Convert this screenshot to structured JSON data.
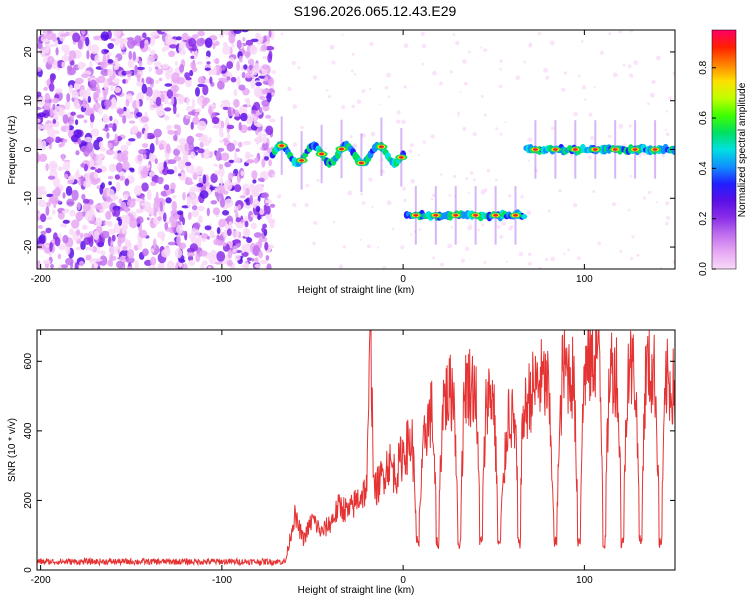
{
  "title": "S196.2026.065.12.43.E29",
  "colors": {
    "snr_line": "#e53333",
    "colormap": [
      "#f8d9f8",
      "#e8a8f4",
      "#c070ee",
      "#8a2ee8",
      "#5a10e6",
      "#2020ff",
      "#1090ff",
      "#00e0e0",
      "#00e060",
      "#40ff00",
      "#c0ff00",
      "#ffe000",
      "#ff8000",
      "#ff2000",
      "#ff0066"
    ]
  },
  "chart_data": [
    {
      "type": "heatmap",
      "xlabel": "Height of straight line (km)",
      "ylabel": "Frequency (Hz)",
      "xlim": [
        -202,
        150
      ],
      "ylim": [
        -24.5,
        24.5
      ],
      "xticks": [
        -200,
        -100,
        0,
        100
      ],
      "yticks": [
        20,
        10,
        0,
        -10,
        -20
      ],
      "colorbar": {
        "label": "Normalized spectral amplitude",
        "range": [
          0,
          0.95
        ],
        "ticks": [
          0,
          0.2,
          0.4,
          0.6,
          0.8
        ]
      },
      "noise_region_x": [
        -202,
        -72
      ],
      "tracks": [
        {
          "x0": -72,
          "x1": 1,
          "freq": -1,
          "peak": 0.9
        },
        {
          "x0": 2,
          "x1": 68,
          "freq": -13.5,
          "peak": 0.9
        },
        {
          "x0": 68,
          "x1": 150,
          "freq": 0,
          "peak": 0.9
        }
      ]
    },
    {
      "type": "line",
      "xlabel": "Height of straight line (km)",
      "ylabel": "SNR (10 * v/v)",
      "xlim": [
        -202,
        150
      ],
      "ylim": [
        0,
        690
      ],
      "xticks": [
        -200,
        -100,
        0,
        100
      ],
      "yticks": [
        0,
        200,
        400,
        600
      ],
      "series": [
        {
          "points": [
            [
              -202,
              18
            ],
            [
              -180,
              20
            ],
            [
              -150,
              19
            ],
            [
              -120,
              21
            ],
            [
              -90,
              20
            ],
            [
              -65,
              22
            ],
            [
              -60,
              160
            ],
            [
              -55,
              90
            ],
            [
              -50,
              150
            ],
            [
              -45,
              110
            ],
            [
              -40,
              140
            ],
            [
              -35,
              190
            ],
            [
              -30,
              170
            ],
            [
              -25,
              210
            ],
            [
              -20,
              240
            ],
            [
              -18,
              690
            ],
            [
              -16,
              230
            ],
            [
              -12,
              270
            ],
            [
              -8,
              320
            ],
            [
              -4,
              280
            ],
            [
              0,
              350
            ],
            [
              5,
              380
            ],
            [
              8,
              85
            ],
            [
              12,
              410
            ],
            [
              16,
              470
            ],
            [
              19,
              90
            ],
            [
              22,
              500
            ],
            [
              28,
              530
            ],
            [
              31,
              70
            ],
            [
              34,
              550
            ],
            [
              40,
              540
            ],
            [
              43,
              60
            ],
            [
              46,
              520
            ],
            [
              50,
              510
            ],
            [
              53,
              70
            ],
            [
              58,
              470
            ],
            [
              62,
              420
            ],
            [
              64,
              80
            ],
            [
              66,
              440
            ],
            [
              70,
              520
            ],
            [
              76,
              560
            ],
            [
              80,
              540
            ],
            [
              84,
              80
            ],
            [
              88,
              600
            ],
            [
              94,
              570
            ],
            [
              97,
              90
            ],
            [
              100,
              590
            ],
            [
              104,
              620
            ],
            [
              108,
              670
            ],
            [
              111,
              95
            ],
            [
              114,
              600
            ],
            [
              118,
              580
            ],
            [
              121,
              100
            ],
            [
              124,
              610
            ],
            [
              128,
              580
            ],
            [
              131,
              95
            ],
            [
              134,
              600
            ],
            [
              139,
              570
            ],
            [
              142,
              90
            ],
            [
              145,
              560
            ],
            [
              150,
              530
            ]
          ],
          "dips": [
            8,
            19,
            31,
            43,
            53,
            64,
            84,
            97,
            111,
            121,
            131,
            142
          ]
        }
      ]
    }
  ]
}
